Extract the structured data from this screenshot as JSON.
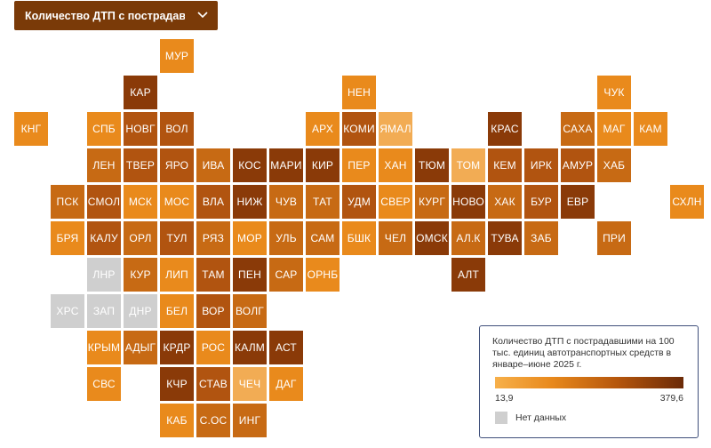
{
  "dropdown": {
    "label": "Количество ДТП с пострадав..."
  },
  "legend": {
    "title": "Количество ДТП с пострадавшими на 100 тыс. единиц автотранспортных средств в январе–июне 2025 г.",
    "min_label": "13,9",
    "max_label": "379,6",
    "nodata_label": "Нет данных",
    "no_data_color": "#cfcfcf"
  },
  "regions": [
    {
      "label": "МУР",
      "row": 0,
      "col": 4,
      "color": "#e98a1c"
    },
    {
      "label": "КАР",
      "row": 1,
      "col": 3,
      "color": "#8a3a08"
    },
    {
      "label": "НЕН",
      "row": 1,
      "col": 9,
      "color": "#e98a1c"
    },
    {
      "label": "ЧУК",
      "row": 1,
      "col": 16,
      "color": "#e98a1c"
    },
    {
      "label": "КНГ",
      "row": 2,
      "col": 0,
      "color": "#e98a1c"
    },
    {
      "label": "СПБ",
      "row": 2,
      "col": 2,
      "color": "#e98a1c"
    },
    {
      "label": "НОВГ",
      "row": 2,
      "col": 3,
      "color": "#b15410"
    },
    {
      "label": "ВОЛ",
      "row": 2,
      "col": 4,
      "color": "#b15410"
    },
    {
      "label": "АРХ",
      "row": 2,
      "col": 8,
      "color": "#e98a1c"
    },
    {
      "label": "КОМИ",
      "row": 2,
      "col": 9,
      "color": "#b15410"
    },
    {
      "label": "ЯМАЛ",
      "row": 2,
      "col": 10,
      "color": "#f2ac54"
    },
    {
      "label": "КРАС",
      "row": 2,
      "col": 13,
      "color": "#8a3a08"
    },
    {
      "label": "САХА",
      "row": 2,
      "col": 15,
      "color": "#c76a14"
    },
    {
      "label": "МАГ",
      "row": 2,
      "col": 16,
      "color": "#e98a1c"
    },
    {
      "label": "КАМ",
      "row": 2,
      "col": 17,
      "color": "#e98a1c"
    },
    {
      "label": "ЛЕН",
      "row": 3,
      "col": 2,
      "color": "#c76a14"
    },
    {
      "label": "ТВЕР",
      "row": 3,
      "col": 3,
      "color": "#b15410"
    },
    {
      "label": "ЯРО",
      "row": 3,
      "col": 4,
      "color": "#b15410"
    },
    {
      "label": "ИВА",
      "row": 3,
      "col": 5,
      "color": "#c76a14"
    },
    {
      "label": "КОС",
      "row": 3,
      "col": 6,
      "color": "#8a3a08"
    },
    {
      "label": "МАРИ",
      "row": 3,
      "col": 7,
      "color": "#8a3a08"
    },
    {
      "label": "КИР",
      "row": 3,
      "col": 8,
      "color": "#8a3a08"
    },
    {
      "label": "ПЕР",
      "row": 3,
      "col": 9,
      "color": "#e98a1c"
    },
    {
      "label": "ХАН",
      "row": 3,
      "col": 10,
      "color": "#e98a1c"
    },
    {
      "label": "ТЮМ",
      "row": 3,
      "col": 11,
      "color": "#8a3a08"
    },
    {
      "label": "ТОМ",
      "row": 3,
      "col": 12,
      "color": "#f2ac54"
    },
    {
      "label": "КЕМ",
      "row": 3,
      "col": 13,
      "color": "#b15410"
    },
    {
      "label": "ИРК",
      "row": 3,
      "col": 14,
      "color": "#b15410"
    },
    {
      "label": "АМУР",
      "row": 3,
      "col": 15,
      "color": "#b15410"
    },
    {
      "label": "ХАБ",
      "row": 3,
      "col": 16,
      "color": "#c76a14"
    },
    {
      "label": "ПСК",
      "row": 4,
      "col": 1,
      "color": "#c76a14"
    },
    {
      "label": "СМОЛ",
      "row": 4,
      "col": 2,
      "color": "#b15410"
    },
    {
      "label": "МСК",
      "row": 4,
      "col": 3,
      "color": "#e98a1c"
    },
    {
      "label": "МОС",
      "row": 4,
      "col": 4,
      "color": "#e98a1c"
    },
    {
      "label": "ВЛА",
      "row": 4,
      "col": 5,
      "color": "#b15410"
    },
    {
      "label": "НИЖ",
      "row": 4,
      "col": 6,
      "color": "#8a3a08"
    },
    {
      "label": "ЧУВ",
      "row": 4,
      "col": 7,
      "color": "#c76a14"
    },
    {
      "label": "ТАТ",
      "row": 4,
      "col": 8,
      "color": "#c76a14"
    },
    {
      "label": "УДМ",
      "row": 4,
      "col": 9,
      "color": "#b15410"
    },
    {
      "label": "СВЕР",
      "row": 4,
      "col": 10,
      "color": "#e98a1c"
    },
    {
      "label": "КУРГ",
      "row": 4,
      "col": 11,
      "color": "#c76a14"
    },
    {
      "label": "НОВО",
      "row": 4,
      "col": 12,
      "color": "#8a3a08"
    },
    {
      "label": "ХАК",
      "row": 4,
      "col": 13,
      "color": "#c76a14"
    },
    {
      "label": "БУР",
      "row": 4,
      "col": 14,
      "color": "#b15410"
    },
    {
      "label": "ЕВР",
      "row": 4,
      "col": 15,
      "color": "#8a3a08"
    },
    {
      "label": "СХЛН",
      "row": 4,
      "col": 18,
      "color": "#e98a1c"
    },
    {
      "label": "БРЯ",
      "row": 5,
      "col": 1,
      "color": "#e98a1c"
    },
    {
      "label": "КАЛУ",
      "row": 5,
      "col": 2,
      "color": "#b15410"
    },
    {
      "label": "ОРЛ",
      "row": 5,
      "col": 3,
      "color": "#c76a14"
    },
    {
      "label": "ТУЛ",
      "row": 5,
      "col": 4,
      "color": "#b15410"
    },
    {
      "label": "РЯЗ",
      "row": 5,
      "col": 5,
      "color": "#c76a14"
    },
    {
      "label": "МОР",
      "row": 5,
      "col": 6,
      "color": "#e98a1c"
    },
    {
      "label": "УЛЬ",
      "row": 5,
      "col": 7,
      "color": "#c76a14"
    },
    {
      "label": "САМ",
      "row": 5,
      "col": 8,
      "color": "#c76a14"
    },
    {
      "label": "БШК",
      "row": 5,
      "col": 9,
      "color": "#e98a1c"
    },
    {
      "label": "ЧЕЛ",
      "row": 5,
      "col": 10,
      "color": "#c76a14"
    },
    {
      "label": "ОМСК",
      "row": 5,
      "col": 11,
      "color": "#8a3a08"
    },
    {
      "label": "АЛ.К",
      "row": 5,
      "col": 12,
      "color": "#c76a14"
    },
    {
      "label": "ТУВА",
      "row": 5,
      "col": 13,
      "color": "#8a3a08"
    },
    {
      "label": "ЗАБ",
      "row": 5,
      "col": 14,
      "color": "#c76a14"
    },
    {
      "label": "ПРИ",
      "row": 5,
      "col": 16,
      "color": "#c76a14"
    },
    {
      "label": "ЛНР",
      "row": 6,
      "col": 2,
      "color": "#cfcfcf"
    },
    {
      "label": "КУР",
      "row": 6,
      "col": 3,
      "color": "#c76a14"
    },
    {
      "label": "ЛИП",
      "row": 6,
      "col": 4,
      "color": "#e98a1c"
    },
    {
      "label": "ТАМ",
      "row": 6,
      "col": 5,
      "color": "#b15410"
    },
    {
      "label": "ПЕН",
      "row": 6,
      "col": 6,
      "color": "#8a3a08"
    },
    {
      "label": "САР",
      "row": 6,
      "col": 7,
      "color": "#c76a14"
    },
    {
      "label": "ОРНБ",
      "row": 6,
      "col": 8,
      "color": "#e98a1c"
    },
    {
      "label": "АЛТ",
      "row": 6,
      "col": 12,
      "color": "#8a3a08"
    },
    {
      "label": "ХРС",
      "row": 7,
      "col": 1,
      "color": "#cfcfcf"
    },
    {
      "label": "ЗАП",
      "row": 7,
      "col": 2,
      "color": "#cfcfcf"
    },
    {
      "label": "ДНР",
      "row": 7,
      "col": 3,
      "color": "#cfcfcf"
    },
    {
      "label": "БЕЛ",
      "row": 7,
      "col": 4,
      "color": "#e98a1c"
    },
    {
      "label": "ВОР",
      "row": 7,
      "col": 5,
      "color": "#b15410"
    },
    {
      "label": "ВОЛГ",
      "row": 7,
      "col": 6,
      "color": "#c76a14"
    },
    {
      "label": "КРЫМ",
      "row": 8,
      "col": 2,
      "color": "#e98a1c"
    },
    {
      "label": "АДЫГ",
      "row": 8,
      "col": 3,
      "color": "#c76a14"
    },
    {
      "label": "КРДР",
      "row": 8,
      "col": 4,
      "color": "#8a3a08"
    },
    {
      "label": "РОС",
      "row": 8,
      "col": 5,
      "color": "#e98a1c"
    },
    {
      "label": "КАЛМ",
      "row": 8,
      "col": 6,
      "color": "#8a3a08"
    },
    {
      "label": "АСТ",
      "row": 8,
      "col": 7,
      "color": "#8a3a08"
    },
    {
      "label": "СВС",
      "row": 9,
      "col": 2,
      "color": "#e98a1c"
    },
    {
      "label": "КЧР",
      "row": 9,
      "col": 4,
      "color": "#8a3a08"
    },
    {
      "label": "СТАВ",
      "row": 9,
      "col": 5,
      "color": "#b15410"
    },
    {
      "label": "ЧЕЧ",
      "row": 9,
      "col": 6,
      "color": "#f2ac54"
    },
    {
      "label": "ДАГ",
      "row": 9,
      "col": 7,
      "color": "#e98a1c"
    },
    {
      "label": "КАБ",
      "row": 10,
      "col": 4,
      "color": "#e98a1c"
    },
    {
      "label": "С.ОС",
      "row": 10,
      "col": 5,
      "color": "#c76a14"
    },
    {
      "label": "ИНГ",
      "row": 10,
      "col": 6,
      "color": "#c76a14"
    }
  ]
}
